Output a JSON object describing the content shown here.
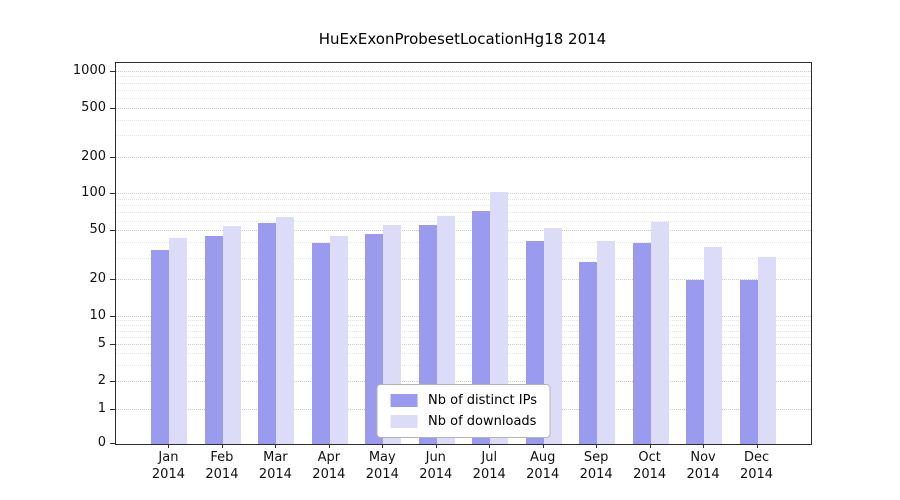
{
  "chart_data": {
    "type": "bar",
    "title": "HuExExonProbesetLocationHg18 2014",
    "categories": [
      "Jan",
      "Feb",
      "Mar",
      "Apr",
      "May",
      "Jun",
      "Jul",
      "Aug",
      "Sep",
      "Oct",
      "Nov",
      "Dec"
    ],
    "category_year": "2014",
    "series": [
      {
        "name": "Nb of distinct IPs",
        "color": "#9a9aef",
        "values": [
          35,
          46,
          58,
          40,
          48,
          56,
          73,
          42,
          28,
          40,
          20,
          20
        ]
      },
      {
        "name": "Nb of downloads",
        "color": "#dcdcf9",
        "values": [
          44,
          55,
          65,
          46,
          56,
          67,
          104,
          53,
          42,
          60,
          37,
          31
        ]
      }
    ],
    "y_ticks": [
      0,
      1,
      2,
      5,
      10,
      20,
      50,
      100,
      200,
      500,
      1000
    ],
    "y_scale": "log-like",
    "ylim": [
      0,
      1000
    ],
    "grid": true,
    "legend_position": "lower center"
  }
}
